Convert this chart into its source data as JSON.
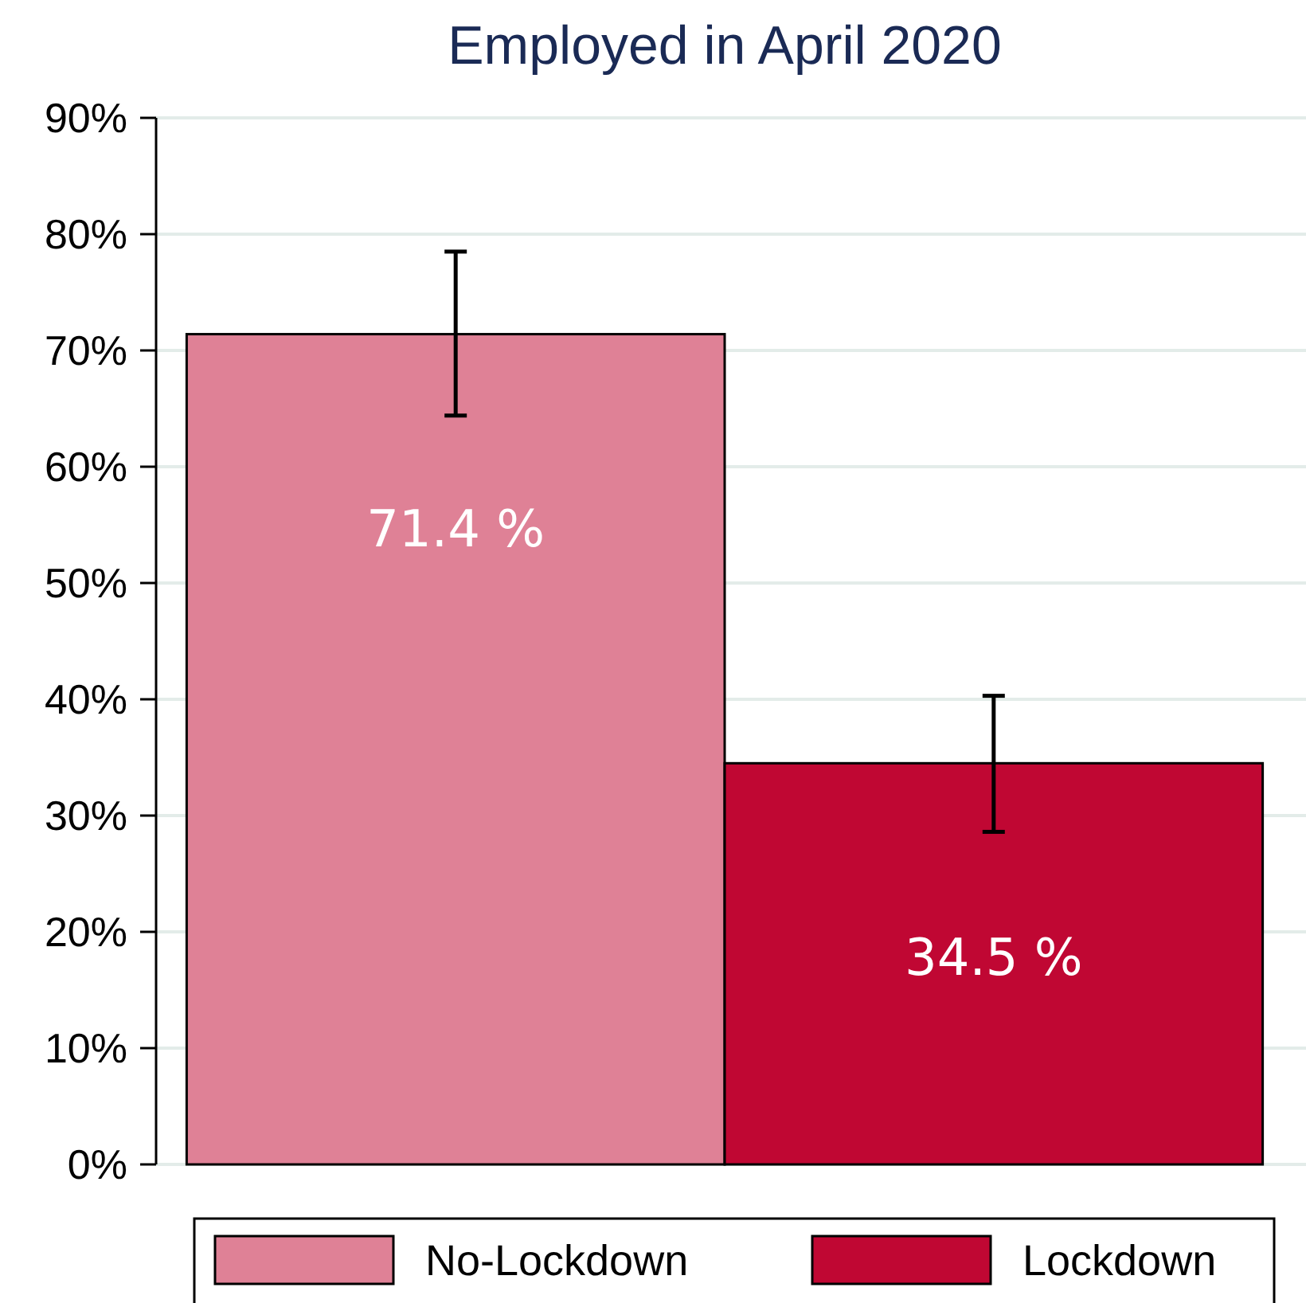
{
  "chart_data": {
    "type": "bar",
    "title": "Employed in April 2020",
    "categories": [
      null
    ],
    "series": [
      {
        "name": "No-Lockdown",
        "color": "#df8196",
        "values": [
          71.4
        ],
        "errors": [
          [
            64.4,
            78.5
          ]
        ],
        "value_labels": [
          "71.4 %"
        ]
      },
      {
        "name": "Lockdown",
        "color": "#c00733",
        "values": [
          34.5
        ],
        "errors": [
          [
            28.6,
            40.3
          ]
        ],
        "value_labels": [
          "34.5 %"
        ]
      }
    ],
    "ylim": [
      0,
      90
    ],
    "yticks": [
      {
        "value": 0,
        "label": "0%"
      },
      {
        "value": 10,
        "label": "10%"
      },
      {
        "value": 20,
        "label": "20%"
      },
      {
        "value": 30,
        "label": "30%"
      },
      {
        "value": 40,
        "label": "40%"
      },
      {
        "value": 50,
        "label": "50%"
      },
      {
        "value": 60,
        "label": "60%"
      },
      {
        "value": 70,
        "label": "70%"
      },
      {
        "value": 80,
        "label": "80%"
      },
      {
        "value": 90,
        "label": "90%"
      }
    ],
    "grid": "y",
    "legend": "bottom"
  }
}
